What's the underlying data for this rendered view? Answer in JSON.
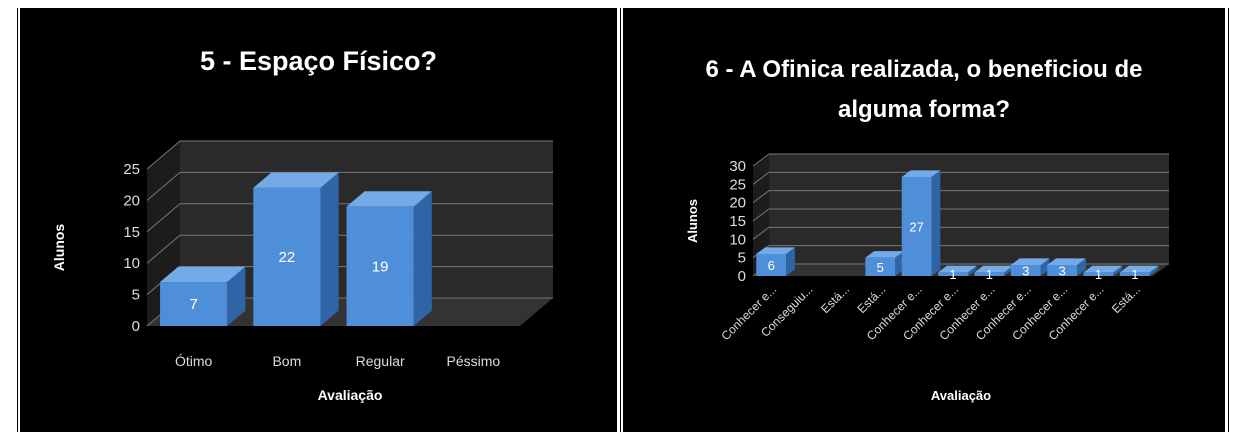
{
  "charts": [
    {
      "title": "5 - Espaço Físico?",
      "colors": {
        "bar_front": "#4f8fd9",
        "bar_side": "#2f64a6",
        "bar_top": "#75aae8",
        "plot_wall": "#2a2a2a",
        "grid": "#777777",
        "text": "#dddddd"
      },
      "chart_data": {
        "type": "bar",
        "categories": [
          "Ótimo",
          "Bom",
          "Regular",
          "Péssimo"
        ],
        "values": [
          7,
          22,
          19,
          0
        ],
        "data_labels": [
          "7",
          "22",
          "19",
          ""
        ],
        "yticks": [
          "0",
          "5",
          "10",
          "15",
          "20",
          "25"
        ],
        "ylim": [
          0,
          25
        ],
        "xlabel": "Avaliação",
        "ylabel": "Alunos",
        "grid": true,
        "legend": "none"
      }
    },
    {
      "title": "6 - A Ofinica realizada, o beneficiou de alguma forma?",
      "colors": {
        "bar_front": "#4f8fd9",
        "bar_side": "#2f64a6",
        "bar_top": "#75aae8",
        "plot_wall": "#2a2a2a",
        "grid": "#777777",
        "text": "#dddddd"
      },
      "chart_data": {
        "type": "bar",
        "categories": [
          "Conhecer e...",
          "Conseguiu...",
          "Está...",
          "Está...",
          "Conhecer e...",
          "Conhecer e...",
          "Conhecer e...",
          "Conhecer e...",
          "Conhecer e...",
          "Conhecer e...",
          "Está..."
        ],
        "values": [
          6,
          0,
          0,
          5,
          27,
          1,
          1,
          3,
          3,
          1,
          1
        ],
        "data_labels": [
          "6",
          "",
          "",
          "5",
          "27",
          "1",
          "1",
          "3",
          "3",
          "1",
          "1"
        ],
        "yticks": [
          "0",
          "5",
          "10",
          "15",
          "20",
          "25",
          "30"
        ],
        "ylim": [
          0,
          30
        ],
        "xlabel": "Avaliação",
        "ylabel": "Alunos",
        "grid": true,
        "legend": "none"
      }
    }
  ]
}
